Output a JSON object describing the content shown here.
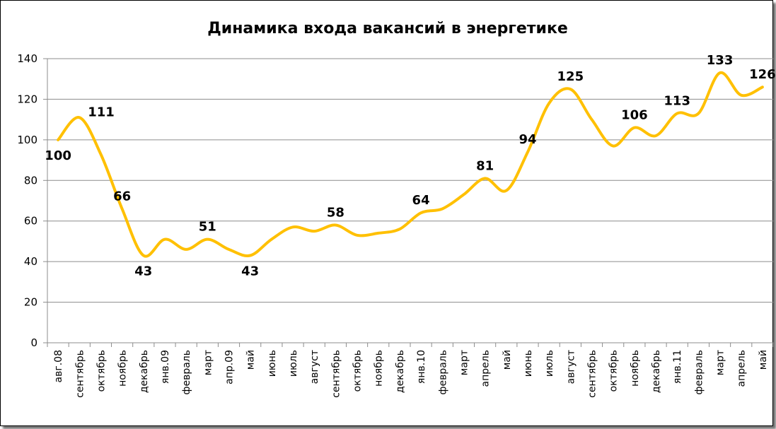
{
  "chart_data": {
    "type": "line",
    "title": "Динамика входа вакансий в энергетике",
    "xlabel": "",
    "ylabel": "",
    "ylim": [
      0,
      140
    ],
    "yticks": [
      0,
      20,
      40,
      60,
      80,
      100,
      120,
      140
    ],
    "grid": "horizontal",
    "legend": "none",
    "line_color": "#FFC000",
    "categories": [
      "авг.08",
      "сентябрь",
      "октябрь",
      "ноябрь",
      "декабрь",
      "янв.09",
      "февраль",
      "март",
      "апр.09",
      "май",
      "июнь",
      "июль",
      "август",
      "сентябрь",
      "октябрь",
      "ноябрь",
      "декабрь",
      "янв.10",
      "февраль",
      "март",
      "апрель",
      "май",
      "июнь",
      "июль",
      "август",
      "сентябрь",
      "октябрь",
      "ноябрь",
      "декабрь",
      "янв.11",
      "февраль",
      "март",
      "апрель",
      "май"
    ],
    "values": [
      100,
      111,
      93,
      66,
      43,
      51,
      46,
      51,
      46,
      43,
      51,
      57,
      55,
      58,
      53,
      54,
      56,
      64,
      66,
      73,
      81,
      75,
      94,
      118,
      125,
      110,
      97,
      106,
      102,
      113,
      113,
      133,
      122,
      126
    ],
    "data_labels": [
      {
        "index": 0,
        "text": "100",
        "pos": "below"
      },
      {
        "index": 1,
        "text": "111",
        "pos": "right"
      },
      {
        "index": 3,
        "text": "66",
        "pos": "above"
      },
      {
        "index": 4,
        "text": "43",
        "pos": "below"
      },
      {
        "index": 7,
        "text": "51",
        "pos": "above"
      },
      {
        "index": 9,
        "text": "43",
        "pos": "below"
      },
      {
        "index": 13,
        "text": "58",
        "pos": "above"
      },
      {
        "index": 17,
        "text": "64",
        "pos": "above"
      },
      {
        "index": 20,
        "text": "81",
        "pos": "above"
      },
      {
        "index": 22,
        "text": "94",
        "pos": "above"
      },
      {
        "index": 24,
        "text": "125",
        "pos": "above"
      },
      {
        "index": 27,
        "text": "106",
        "pos": "above"
      },
      {
        "index": 29,
        "text": "113",
        "pos": "above"
      },
      {
        "index": 31,
        "text": "133",
        "pos": "above"
      },
      {
        "index": 33,
        "text": "126",
        "pos": "above"
      }
    ]
  }
}
